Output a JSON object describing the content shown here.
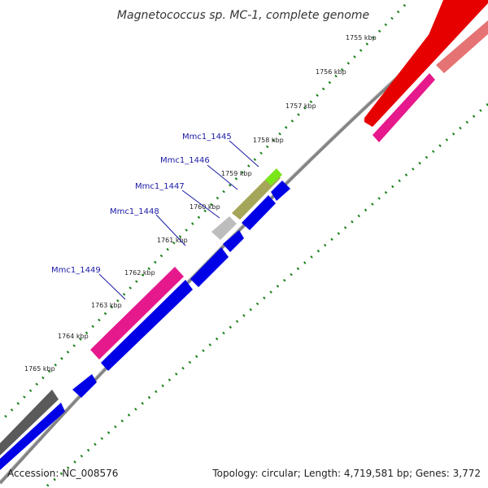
{
  "title": "Magnetococcus sp. MC-1, complete genome",
  "accession": "Accession: NC_008576",
  "summary": "Topology: circular; Length: 4,719,581 bp; Genes: 3,772",
  "kbp_ticks": [
    "1755 kbp",
    "1756 kbp",
    "1757 kbp",
    "1758 kbp",
    "1759 kbp",
    "1760 kbp",
    "1761 kbp",
    "1762 kbp",
    "1763 kbp",
    "1764 kbp",
    "1765 kbp"
  ],
  "gene_labels": [
    "Mmc1_1445",
    "Mmc1_1446",
    "Mmc1_1447",
    "Mmc1_1448",
    "Mmc1_1449"
  ],
  "colors": {
    "forward_cds": "#0000e6",
    "rna_red": "#e60000",
    "pink": "#e6198c",
    "salmon": "#e67373",
    "olive": "#a6a65a",
    "lime": "#7ae619",
    "grey_light": "#bdbdbd",
    "grey_dark": "#5a5a5a",
    "tick_green": "#1a801a",
    "label_blue": "#1a1aa6"
  }
}
